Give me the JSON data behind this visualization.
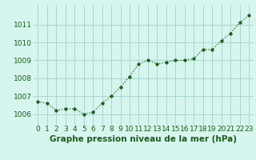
{
  "hours": [
    0,
    1,
    2,
    3,
    4,
    5,
    6,
    7,
    8,
    9,
    10,
    11,
    12,
    13,
    14,
    15,
    16,
    17,
    18,
    19,
    20,
    21,
    22,
    23
  ],
  "pressure": [
    1006.7,
    1006.6,
    1006.2,
    1006.3,
    1006.3,
    1006.0,
    1006.1,
    1006.6,
    1007.0,
    1007.5,
    1008.1,
    1008.8,
    1009.0,
    1008.8,
    1008.9,
    1009.0,
    1009.0,
    1009.1,
    1009.6,
    1009.6,
    1010.1,
    1010.5,
    1011.1,
    1011.5
  ],
  "line_color": "#1a5c1a",
  "marker": "o",
  "marker_size": 2.5,
  "bg_color": "#d6f5ee",
  "grid_color": "#aad4cc",
  "xlabel": "Graphe pression niveau de la mer (hPa)",
  "xlabel_color": "#1a5c1a",
  "ylabel_ticks": [
    1006,
    1007,
    1008,
    1009,
    1010,
    1011
  ],
  "ylim": [
    1005.4,
    1012.1
  ],
  "xlim": [
    -0.5,
    23.5
  ],
  "tick_color": "#1a5c1a",
  "tick_fontsize": 6.5,
  "xlabel_fontsize": 7.5
}
